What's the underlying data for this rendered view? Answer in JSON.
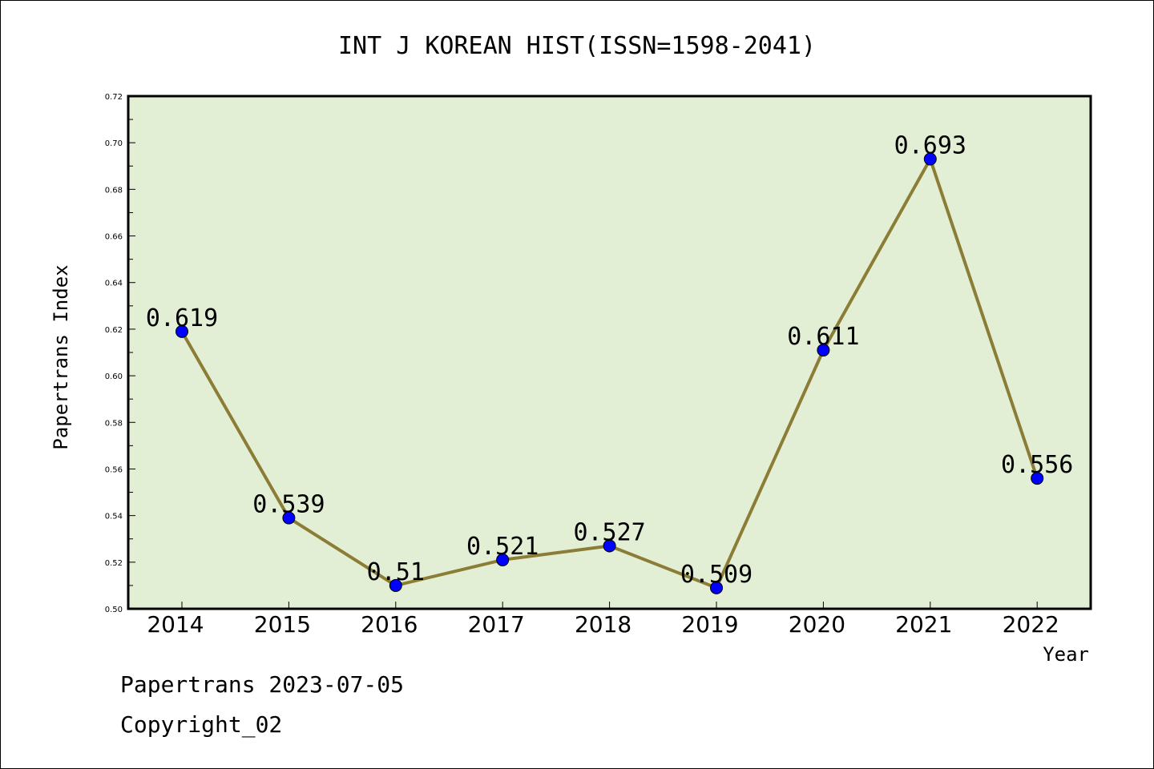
{
  "chart_data": {
    "type": "line",
    "title": "INT J KOREAN HIST(ISSN=1598-2041)",
    "xlabel": "Year",
    "ylabel": "Papertrans Index",
    "categories": [
      "2014",
      "2015",
      "2016",
      "2017",
      "2018",
      "2019",
      "2020",
      "2021",
      "2022"
    ],
    "series": [
      {
        "values": [
          0.619,
          0.539,
          0.51,
          0.521,
          0.527,
          0.509,
          0.611,
          0.693,
          0.556
        ],
        "labels": [
          "0.619",
          "0.539",
          "0.51",
          "0.521",
          "0.527",
          "0.509",
          "0.611",
          "0.693",
          "0.556"
        ]
      }
    ],
    "ylim": [
      0.5,
      0.72
    ],
    "yticks": [
      "0.50",
      "0.52",
      "0.54",
      "0.56",
      "0.58",
      "0.60",
      "0.62",
      "0.64",
      "0.66",
      "0.68",
      "0.70",
      "0.72"
    ],
    "grid": false,
    "colors": {
      "plot_background": "#e2efd5",
      "line": "#8b7d35",
      "marker": "#0000ff"
    }
  },
  "footer": {
    "line1": "Papertrans 2023-07-05",
    "line2": "Copyright_02"
  }
}
